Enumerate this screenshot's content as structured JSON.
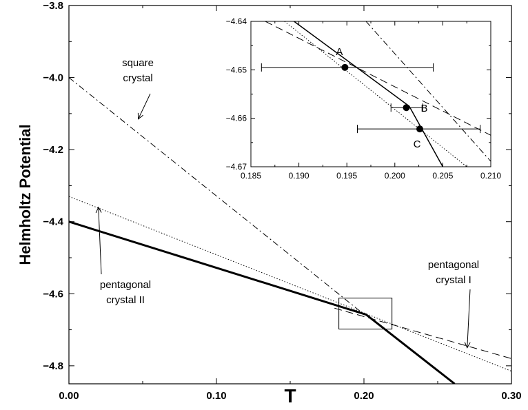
{
  "chart_data": [
    {
      "type": "line",
      "title": "",
      "xlabel": "T",
      "ylabel": "Helmholtz Potential",
      "xlim": [
        0.0,
        0.3
      ],
      "ylim": [
        -4.85,
        -3.8
      ],
      "xticks": [
        "0.00",
        "0.10",
        "0.20",
        "0.30"
      ],
      "xtick_values": [
        0.0,
        0.1,
        0.2,
        0.3
      ],
      "yticks": [
        "−4.8",
        "−4.6",
        "−4.4",
        "−4.2",
        "−4.0",
        "−3.8"
      ],
      "ytick_values": [
        -4.8,
        -4.6,
        -4.4,
        -4.2,
        -4.0,
        -3.8
      ],
      "series": [
        {
          "style": "solid-thick",
          "x": [
            0.0,
            0.2015,
            0.2615
          ],
          "y": [
            -4.4,
            -4.658,
            -4.85
          ]
        },
        {
          "style": "dotted",
          "x": [
            0.0,
            0.3
          ],
          "y": [
            -4.33,
            -4.815
          ]
        },
        {
          "style": "dashed",
          "x": [
            0.18,
            0.3
          ],
          "y": [
            -4.64,
            -4.78
          ]
        },
        {
          "style": "dash-dot",
          "x": [
            0.0,
            0.2
          ],
          "y": [
            -4.0,
            -4.657
          ]
        }
      ],
      "annotations": [
        {
          "text_lines": [
            "square",
            "crystal"
          ],
          "arrow_to": [
            0.047,
            -4.115
          ]
        },
        {
          "text_lines": [
            "pentagonal",
            "crystal II"
          ],
          "arrow_to": [
            0.02,
            -4.36
          ]
        },
        {
          "text_lines": [
            "pentagonal",
            "crystal I"
          ],
          "arrow_to": [
            0.27,
            -4.75
          ]
        }
      ],
      "zoom_box": {
        "x": [
          0.183,
          0.219
        ],
        "y": [
          -4.698,
          -4.612
        ]
      },
      "grid": false,
      "legend": "none"
    },
    {
      "type": "line",
      "title": "",
      "xlim": [
        0.185,
        0.21
      ],
      "ylim": [
        -4.67,
        -4.64
      ],
      "xticks": [
        "0.185",
        "0.190",
        "0.195",
        "0.200",
        "0.205",
        "0.210"
      ],
      "xtick_values": [
        0.185,
        0.19,
        0.195,
        0.2,
        0.205,
        0.21
      ],
      "yticks": [
        "−4.67",
        "−4.66",
        "−4.65",
        "−4.64"
      ],
      "ytick_values": [
        -4.67,
        -4.66,
        -4.65,
        -4.64
      ],
      "series": [
        {
          "style": "solid",
          "x": [
            0.1895,
            0.2015,
            0.205
          ],
          "y": [
            -4.64,
            -4.6575,
            -4.67
          ]
        },
        {
          "style": "dotted",
          "x": [
            0.1885,
            0.2075
          ],
          "y": [
            -4.64,
            -4.67
          ]
        },
        {
          "style": "dashed",
          "x": [
            0.1865,
            0.21
          ],
          "y": [
            -4.64,
            -4.6635
          ]
        },
        {
          "style": "dash-dot",
          "x": [
            0.197,
            0.2105
          ],
          "y": [
            -4.64,
            -4.67
          ]
        }
      ],
      "points": [
        {
          "label": "A",
          "x": 0.1948,
          "y": -4.6495,
          "xerr_low": 0.1861,
          "xerr_high": 0.204
        },
        {
          "label": "B",
          "x": 0.2012,
          "y": -4.6578,
          "xerr_low": 0.1996,
          "xerr_high": 0.2029
        },
        {
          "label": "C",
          "x": 0.2026,
          "y": -4.6622,
          "xerr_low": 0.1961,
          "xerr_high": 0.2089
        }
      ],
      "grid": false,
      "legend": "none"
    }
  ]
}
